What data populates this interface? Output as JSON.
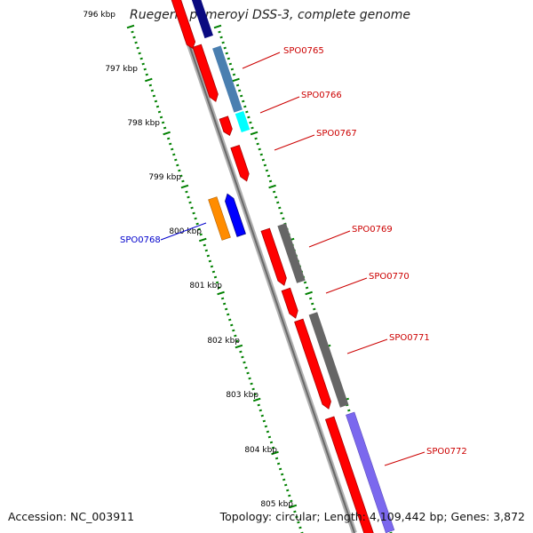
{
  "title": "Ruegeria pomeroyi DSS-3, complete genome",
  "footer": {
    "accession": "Accession: NC_003911",
    "stats": "Topology: circular; Length: 4,109,442 bp; Genes: 3,872"
  },
  "ruler": {
    "labels": [
      "796 kbp",
      "797 kbp",
      "798 kbp",
      "799 kbp",
      "800 kbp",
      "801 kbp",
      "802 kbp",
      "803 kbp",
      "804 kbp",
      "805 kbp"
    ]
  },
  "genes": [
    {
      "label": "SPO0765",
      "color": "#cc0000"
    },
    {
      "label": "SPO0766",
      "color": "#cc0000"
    },
    {
      "label": "SPO0767",
      "color": "#cc0000"
    },
    {
      "label": "SPO0768",
      "color": "#0000cc"
    },
    {
      "label": "SPO0769",
      "color": "#cc0000"
    },
    {
      "label": "SPO0770",
      "color": "#cc0000"
    },
    {
      "label": "SPO0771",
      "color": "#cc0000"
    },
    {
      "label": "SPO0772",
      "color": "#cc0000"
    }
  ],
  "colors": {
    "forward_cds": "#ff0000",
    "reverse_cds": "#0000ff",
    "backbone": "#808080",
    "tick": "#008000",
    "navy_feature": "#000080",
    "steelblue_feature": "#4a7fb0",
    "cyan_feature": "#00ffff",
    "orange_feature": "#ff8c00",
    "gray_feature": "#606060",
    "lavender_feature": "#7b68ee"
  }
}
